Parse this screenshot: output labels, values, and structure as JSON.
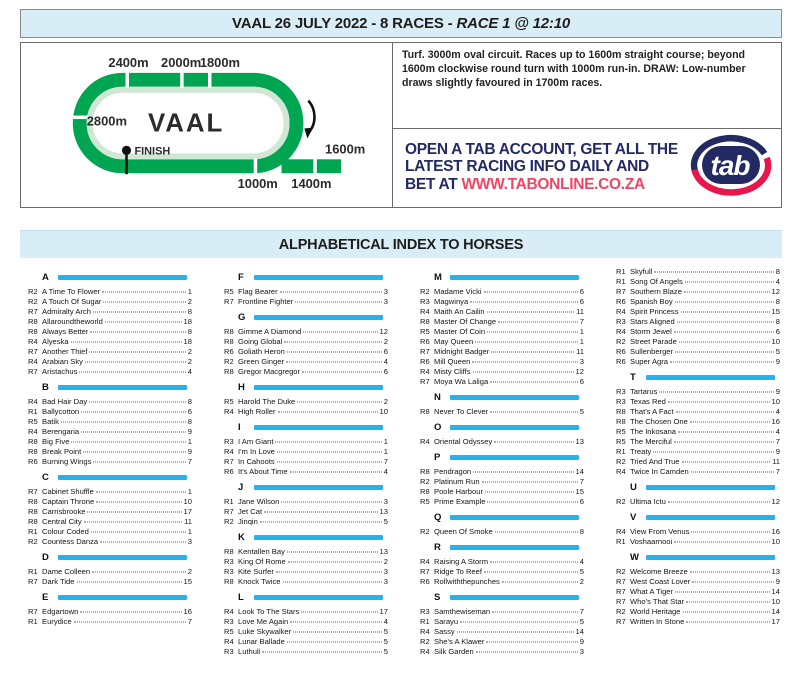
{
  "header": {
    "title_main": "VAAL 26 JULY 2022 - 8 RACES -",
    "title_race": "RACE 1 @ 12:10"
  },
  "track": {
    "name": "VAAL",
    "finish": "FINISH",
    "m2400": "2400m",
    "m2000": "2000m",
    "m1800": "1800m",
    "m2800": "2800m",
    "m1600": "1600m",
    "m1000": "1000m",
    "m1400": "1400m",
    "description": "Turf. 3000m oval circuit. Races up to 1600m straight course; beyond 1600m clockwise round turn with 1000m run-in. DRAW: Low-number draws slightly favoured in 1700m races."
  },
  "ad": {
    "line1": "OPEN A TAB ACCOUNT, GET ALL THE",
    "line2": "LATEST RACING INFO DAILY AND",
    "line3_prefix": "BET AT ",
    "line3_url": "WWW.TABONLINE.CO.ZA",
    "logo_text": "tab"
  },
  "index": {
    "title": "ALPHABETICAL INDEX TO HORSES",
    "columns": [
      [
        {
          "letter": "A"
        },
        {
          "race": "R2",
          "name": "A Time To Flower",
          "page": "1"
        },
        {
          "race": "R2",
          "name": "A Touch Of Sugar",
          "page": "2"
        },
        {
          "race": "R7",
          "name": "Admiralty Arch",
          "page": "8"
        },
        {
          "race": "R8",
          "name": "Allaroundtheworld",
          "page": "18"
        },
        {
          "race": "R8",
          "name": "Always Better",
          "page": "8"
        },
        {
          "race": "R4",
          "name": "Alyeska",
          "page": "18"
        },
        {
          "race": "R7",
          "name": "Another Thief",
          "page": "2"
        },
        {
          "race": "R4",
          "name": "Arabian Sky",
          "page": "2"
        },
        {
          "race": "R7",
          "name": "Aristachus",
          "page": "4"
        },
        {
          "letter": "B"
        },
        {
          "race": "R4",
          "name": "Bad Hair Day",
          "page": "8"
        },
        {
          "race": "R1",
          "name": "Ballycotton",
          "page": "6"
        },
        {
          "race": "R5",
          "name": "Batik",
          "page": "8"
        },
        {
          "race": "R4",
          "name": "Berengaria",
          "page": "9"
        },
        {
          "race": "R8",
          "name": "Big Five",
          "page": "1"
        },
        {
          "race": "R8",
          "name": "Break Point",
          "page": "9"
        },
        {
          "race": "R6",
          "name": "Burning Wings",
          "page": "7"
        },
        {
          "letter": "C"
        },
        {
          "race": "R7",
          "name": "Cabinet Shuffle",
          "page": "1"
        },
        {
          "race": "R8",
          "name": "Captain Throne",
          "page": "10"
        },
        {
          "race": "R8",
          "name": "Carrisbrooke",
          "page": "17"
        },
        {
          "race": "R8",
          "name": "Central City",
          "page": "11"
        },
        {
          "race": "R1",
          "name": "Colour Coded",
          "page": "1"
        },
        {
          "race": "R2",
          "name": "Countess Danza",
          "page": "3"
        },
        {
          "letter": "D"
        },
        {
          "race": "R1",
          "name": "Dame Colleen",
          "page": "2"
        },
        {
          "race": "R7",
          "name": "Dark Tide",
          "page": "15"
        },
        {
          "letter": "E"
        },
        {
          "race": "R7",
          "name": "Edgartown",
          "page": "16"
        },
        {
          "race": "R1",
          "name": "Eurydice",
          "page": "7"
        }
      ],
      [
        {
          "letter": "F"
        },
        {
          "race": "R5",
          "name": "Flag Bearer",
          "page": "3"
        },
        {
          "race": "R7",
          "name": "Frontline Fighter",
          "page": "3"
        },
        {
          "letter": "G"
        },
        {
          "race": "R8",
          "name": "Gimme A Diamond",
          "page": "12"
        },
        {
          "race": "R8",
          "name": "Going Global",
          "page": "2"
        },
        {
          "race": "R6",
          "name": "Goliath Heron",
          "page": "6"
        },
        {
          "race": "R2",
          "name": "Green Ginger",
          "page": "4"
        },
        {
          "race": "R8",
          "name": "Gregor Macgregor",
          "page": "6"
        },
        {
          "letter": "H"
        },
        {
          "race": "R5",
          "name": "Harold The Duke",
          "page": "2"
        },
        {
          "race": "R4",
          "name": "High Roller",
          "page": "10"
        },
        {
          "letter": "I"
        },
        {
          "race": "R3",
          "name": "I Am Giant",
          "page": "1"
        },
        {
          "race": "R4",
          "name": "I'm In Love",
          "page": "1"
        },
        {
          "race": "R7",
          "name": "In Cahoots",
          "page": "7"
        },
        {
          "race": "R6",
          "name": "It's About Time",
          "page": "4"
        },
        {
          "letter": "J"
        },
        {
          "race": "R1",
          "name": "Jane Wilson",
          "page": "3"
        },
        {
          "race": "R7",
          "name": "Jet Cat",
          "page": "13"
        },
        {
          "race": "R2",
          "name": "Jinqin",
          "page": "5"
        },
        {
          "letter": "K"
        },
        {
          "race": "R8",
          "name": "Kentallen Bay",
          "page": "13"
        },
        {
          "race": "R3",
          "name": "King Of Rome",
          "page": "2"
        },
        {
          "race": "R3",
          "name": "Kite Surfer",
          "page": "3"
        },
        {
          "race": "R8",
          "name": "Knock Twice",
          "page": "3"
        },
        {
          "letter": "L"
        },
        {
          "race": "R4",
          "name": "Look To The Stars",
          "page": "17"
        },
        {
          "race": "R3",
          "name": "Love Me Again",
          "page": "4"
        },
        {
          "race": "R5",
          "name": "Luke Skywalker",
          "page": "5"
        },
        {
          "race": "R4",
          "name": "Lunar Ballade",
          "page": "5"
        },
        {
          "race": "R3",
          "name": "Luthuli",
          "page": "5"
        }
      ],
      [
        {
          "letter": "M"
        },
        {
          "race": "R2",
          "name": "Madame Vicki",
          "page": "6"
        },
        {
          "race": "R3",
          "name": "Magwinya",
          "page": "6"
        },
        {
          "race": "R4",
          "name": "Maith An Cailin",
          "page": "11"
        },
        {
          "race": "R8",
          "name": "Master Of Change",
          "page": "7"
        },
        {
          "race": "R5",
          "name": "Master Of Coin",
          "page": "1"
        },
        {
          "race": "R6",
          "name": "May Queen",
          "page": "1"
        },
        {
          "race": "R7",
          "name": "Midnight Badger",
          "page": "11"
        },
        {
          "race": "R6",
          "name": "Mill Queen",
          "page": "3"
        },
        {
          "race": "R4",
          "name": "Misty Cliffs",
          "page": "12"
        },
        {
          "race": "R7",
          "name": "Moya Wa Laliga",
          "page": "6"
        },
        {
          "letter": "N"
        },
        {
          "race": "R8",
          "name": "Never To Clever",
          "page": "5"
        },
        {
          "letter": "O"
        },
        {
          "race": "R4",
          "name": "Oriental Odyssey",
          "page": "13"
        },
        {
          "letter": "P"
        },
        {
          "race": "R8",
          "name": "Pendragon",
          "page": "14"
        },
        {
          "race": "R2",
          "name": "Platinum Run",
          "page": "7"
        },
        {
          "race": "R8",
          "name": "Poole Harbour",
          "page": "15"
        },
        {
          "race": "R5",
          "name": "Prime Example",
          "page": "6"
        },
        {
          "letter": "Q"
        },
        {
          "race": "R2",
          "name": "Queen Of Smoke",
          "page": "8"
        },
        {
          "letter": "R"
        },
        {
          "race": "R4",
          "name": "Raising A Storm",
          "page": "4"
        },
        {
          "race": "R7",
          "name": "Ridge To Reef",
          "page": "5"
        },
        {
          "race": "R6",
          "name": "Rollwiththepunches",
          "page": "2"
        },
        {
          "letter": "S"
        },
        {
          "race": "R3",
          "name": "Samthewiseman",
          "page": "7"
        },
        {
          "race": "R1",
          "name": "Sarayu",
          "page": "5"
        },
        {
          "race": "R4",
          "name": "Sassy",
          "page": "14"
        },
        {
          "race": "R2",
          "name": "She's A Klawer",
          "page": "9"
        },
        {
          "race": "R4",
          "name": "Silk Garden",
          "page": "3"
        }
      ],
      [
        {
          "race": "R1",
          "name": "Skyfull",
          "page": "8"
        },
        {
          "race": "R1",
          "name": "Song Of Angels",
          "page": "4"
        },
        {
          "race": "R7",
          "name": "Southern Blaze",
          "page": "12"
        },
        {
          "race": "R6",
          "name": "Spanish Boy",
          "page": "8"
        },
        {
          "race": "R4",
          "name": "Spirit Princess",
          "page": "15"
        },
        {
          "race": "R3",
          "name": "Stars Aligned",
          "page": "8"
        },
        {
          "race": "R4",
          "name": "Storm Jewel",
          "page": "6"
        },
        {
          "race": "R2",
          "name": "Street Parade",
          "page": "10"
        },
        {
          "race": "R6",
          "name": "Sullenberger",
          "page": "5"
        },
        {
          "race": "R6",
          "name": "Super Agra",
          "page": "9"
        },
        {
          "letter": "T"
        },
        {
          "race": "R3",
          "name": "Tartarus",
          "page": "9"
        },
        {
          "race": "R3",
          "name": "Texas Red",
          "page": "10"
        },
        {
          "race": "R8",
          "name": "That's A Fact",
          "page": "4"
        },
        {
          "race": "R8",
          "name": "The Chosen One",
          "page": "16"
        },
        {
          "race": "R5",
          "name": "The Inkosana",
          "page": "4"
        },
        {
          "race": "R5",
          "name": "The Merciful",
          "page": "7"
        },
        {
          "race": "R1",
          "name": "Treaty",
          "page": "9"
        },
        {
          "race": "R2",
          "name": "Tried And True",
          "page": "11"
        },
        {
          "race": "R4",
          "name": "Twice In Camden",
          "page": "7"
        },
        {
          "letter": "U"
        },
        {
          "race": "R2",
          "name": "Ultima Ictu",
          "page": "12"
        },
        {
          "letter": "V"
        },
        {
          "race": "R4",
          "name": "View From Venus",
          "page": "16"
        },
        {
          "race": "R1",
          "name": "Voshaarnooi",
          "page": "10"
        },
        {
          "letter": "W"
        },
        {
          "race": "R2",
          "name": "Welcome Breeze",
          "page": "13"
        },
        {
          "race": "R7",
          "name": "West Coast Lover",
          "page": "9"
        },
        {
          "race": "R7",
          "name": "What A Tiger",
          "page": "14"
        },
        {
          "race": "R7",
          "name": "Who's That Star",
          "page": "10"
        },
        {
          "race": "R2",
          "name": "World Heritage",
          "page": "14"
        },
        {
          "race": "R7",
          "name": "Written In Stone",
          "page": "17"
        }
      ]
    ]
  },
  "colors": {
    "lightblue": "#d9edf7",
    "cyan": "#29b2e8",
    "green": "#00a551",
    "green-inner": "#cfe7d4",
    "navy": "#232a63",
    "red": "#e8174b",
    "url-red": "#ef4665"
  }
}
